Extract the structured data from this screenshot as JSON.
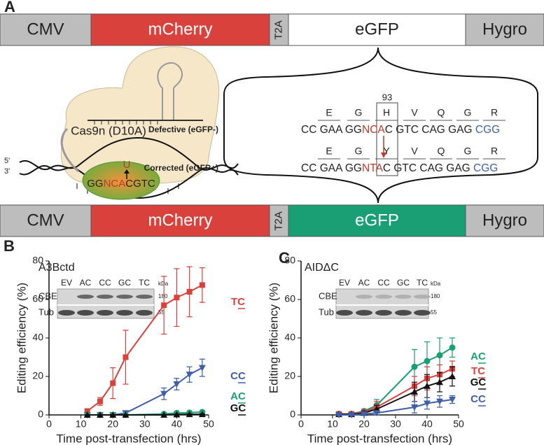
{
  "diagram": {
    "label": "A",
    "top_construct": [
      {
        "text": "CMV",
        "color": "#bdbdbd"
      },
      {
        "text": "mCherry",
        "color": "#d9423c"
      },
      {
        "text": "T2A",
        "color": "#bdbdbd"
      },
      {
        "text": "eGFP",
        "color": "#ffffff"
      },
      {
        "text": "Hygro",
        "color": "#bdbdbd"
      }
    ],
    "bottom_construct": [
      {
        "text": "CMV",
        "color": "#bdbdbd"
      },
      {
        "text": "mCherry",
        "color": "#d9423c"
      },
      {
        "text": "T2A",
        "color": "#bdbdbd"
      },
      {
        "text": "eGFP",
        "color": "#1a9e74"
      },
      {
        "text": "Hygro",
        "color": "#bdbdbd"
      }
    ],
    "cas9": "Cas9n (D10A)",
    "strand_5": "5'",
    "strand_3": "3'",
    "uracil": "U",
    "target": [
      {
        "text": "GG",
        "color": "#222222"
      },
      {
        "text": "NCA",
        "color": "#c0392b"
      },
      {
        "text": "CGTC",
        "color": "#222222"
      }
    ],
    "position": "93",
    "rows": [
      {
        "label": "Defective (eGFP-)",
        "amino_acids": [
          "E",
          "G",
          "H",
          "V",
          "Q",
          "G",
          "R"
        ],
        "sequence": [
          {
            "text": "CC GAA GG",
            "color": "#222222"
          },
          {
            "text": "NCA",
            "color": "#c0392b"
          },
          {
            "text": "C GTC CAG GAG ",
            "color": "#222222"
          },
          {
            "text": "CGG",
            "color": "#3f5fa8"
          }
        ]
      },
      {
        "label": "Corrected (eGFP+)",
        "amino_acids": [
          "E",
          "G",
          "Y",
          "V",
          "Q",
          "G",
          "R"
        ],
        "sequence": [
          {
            "text": "CC GAA GG",
            "color": "#222222"
          },
          {
            "text": "NTA",
            "color": "#c0392b"
          },
          {
            "text": "C GTC CAG GAG ",
            "color": "#222222"
          },
          {
            "text": "CGG",
            "color": "#3f5fa8"
          }
        ]
      }
    ]
  },
  "chart_data": [
    {
      "type": "line",
      "panel": "B",
      "title": "A3Bctd",
      "xlabel": "Time post-transfection (hrs)",
      "ylabel": "Editing efficiency (%)",
      "x": [
        12,
        16,
        20,
        24,
        36,
        40,
        44,
        48
      ],
      "xlim": [
        0,
        50
      ],
      "xticks": [
        0,
        10,
        20,
        30,
        40,
        50
      ],
      "ylim": [
        0,
        80
      ],
      "yticks": [
        0,
        20,
        40,
        60,
        80
      ],
      "series": [
        {
          "name": "TC",
          "color": "#d9423c",
          "marker": "square",
          "values": [
            2,
            7,
            16.5,
            30,
            57,
            61,
            64,
            67.5
          ],
          "errors": [
            1,
            2,
            8,
            14,
            15,
            15,
            13,
            9
          ]
        },
        {
          "name": "CC",
          "color": "#3f5fa8",
          "marker": "triangle-down",
          "values": [
            0,
            0,
            0,
            1,
            11,
            16,
            21,
            24.5
          ],
          "errors": [
            0.3,
            0.3,
            0.5,
            1,
            3,
            3,
            4,
            4.5
          ]
        },
        {
          "name": "AC",
          "color": "#1a9e74",
          "marker": "circle",
          "values": [
            0,
            0,
            0,
            0,
            0.5,
            1,
            1.2,
            1.5
          ],
          "errors": [
            0.2,
            0.2,
            0.2,
            0.2,
            0.4,
            0.5,
            0.5,
            0.6
          ]
        },
        {
          "name": "GC",
          "color": "#111111",
          "marker": "triangle-up",
          "values": [
            0,
            0,
            0,
            0,
            0,
            0.2,
            0.3,
            0.3
          ],
          "errors": [
            0.1,
            0.1,
            0.1,
            0.1,
            0.1,
            0.2,
            0.2,
            0.2
          ]
        }
      ],
      "blot": {
        "lanes": [
          "EV",
          "AC",
          "CC",
          "GC",
          "TC"
        ],
        "unit": "kDa",
        "rows": [
          "CBE",
          "Tub"
        ],
        "sizes": [
          180,
          55
        ]
      }
    },
    {
      "type": "line",
      "panel": "C",
      "title": "AIDΔC",
      "xlabel": "Time post-transfection (hrs)",
      "ylabel": "Editing efficiency (%)",
      "x": [
        12,
        16,
        20,
        24,
        36,
        40,
        44,
        48
      ],
      "xlim": [
        0,
        50
      ],
      "xticks": [
        0,
        10,
        20,
        30,
        40,
        50
      ],
      "ylim": [
        0,
        80
      ],
      "yticks": [
        0,
        20,
        40,
        60,
        80
      ],
      "series": [
        {
          "name": "AC",
          "color": "#1a9e74",
          "marker": "circle",
          "values": [
            0.5,
            0.5,
            2,
            5,
            25,
            28,
            31,
            35
          ],
          "errors": [
            0.5,
            0.5,
            1,
            3,
            9,
            10,
            9,
            5
          ]
        },
        {
          "name": "TC",
          "color": "#d9423c",
          "marker": "square",
          "values": [
            0.5,
            0.5,
            1.5,
            4,
            15,
            19,
            21,
            24
          ],
          "errors": [
            0.5,
            0.5,
            1,
            3,
            5,
            6,
            5,
            4
          ]
        },
        {
          "name": "GC",
          "color": "#111111",
          "marker": "triangle-up",
          "values": [
            0.3,
            0.3,
            1,
            3,
            12,
            15,
            17,
            20
          ],
          "errors": [
            0.3,
            0.3,
            1,
            2,
            5,
            6,
            5,
            5
          ]
        },
        {
          "name": "CC",
          "color": "#3f5fa8",
          "marker": "triangle-down",
          "values": [
            0,
            0,
            0.5,
            1,
            4,
            6,
            7,
            8
          ],
          "errors": [
            0.3,
            0.3,
            0.5,
            1,
            3,
            3,
            3,
            2
          ]
        }
      ],
      "blot": {
        "lanes": [
          "EV",
          "AC",
          "CC",
          "GC",
          "TC"
        ],
        "unit": "kDa",
        "rows": [
          "CBE",
          "Tub"
        ],
        "sizes": [
          180,
          55
        ]
      }
    }
  ]
}
